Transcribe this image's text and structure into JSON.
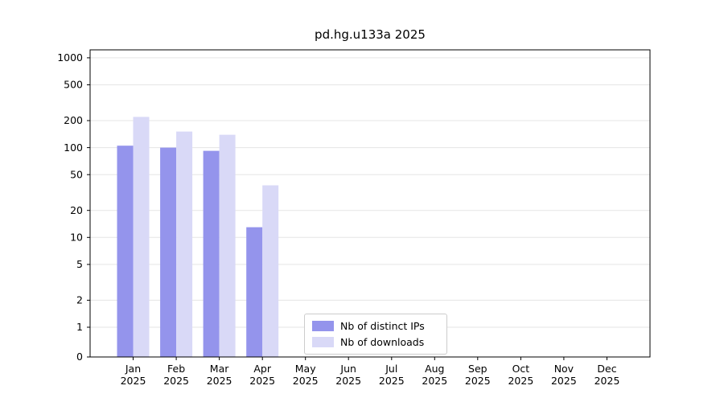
{
  "title": "pd.hg.u133a 2025",
  "chart_data": {
    "type": "bar",
    "title": "pd.hg.u133a 2025",
    "xlabel": "",
    "ylabel": "",
    "categories": [
      "Jan 2025",
      "Feb 2025",
      "Mar 2025",
      "Apr 2025",
      "May 2025",
      "Jun 2025",
      "Jul 2025",
      "Aug 2025",
      "Sep 2025",
      "Oct 2025",
      "Nov 2025",
      "Dec 2025"
    ],
    "series": [
      {
        "name": "Nb of distinct IPs",
        "color": "#9494ec",
        "values": [
          105,
          100,
          92,
          13,
          0,
          0,
          0,
          0,
          0,
          0,
          0,
          0
        ]
      },
      {
        "name": "Nb of downloads",
        "color": "#d9d9f7",
        "values": [
          220,
          151,
          139,
          38,
          0,
          0,
          0,
          0,
          0,
          0,
          0,
          0
        ]
      }
    ],
    "y_scale": "symlog",
    "y_ticks": [
      0,
      1,
      2,
      5,
      10,
      20,
      50,
      100,
      200,
      500,
      1000
    ],
    "ylim": [
      0,
      1200
    ],
    "grid": "horizontal",
    "grid_color": "#e5e5e5",
    "legend_position": "lower-center-inside"
  }
}
